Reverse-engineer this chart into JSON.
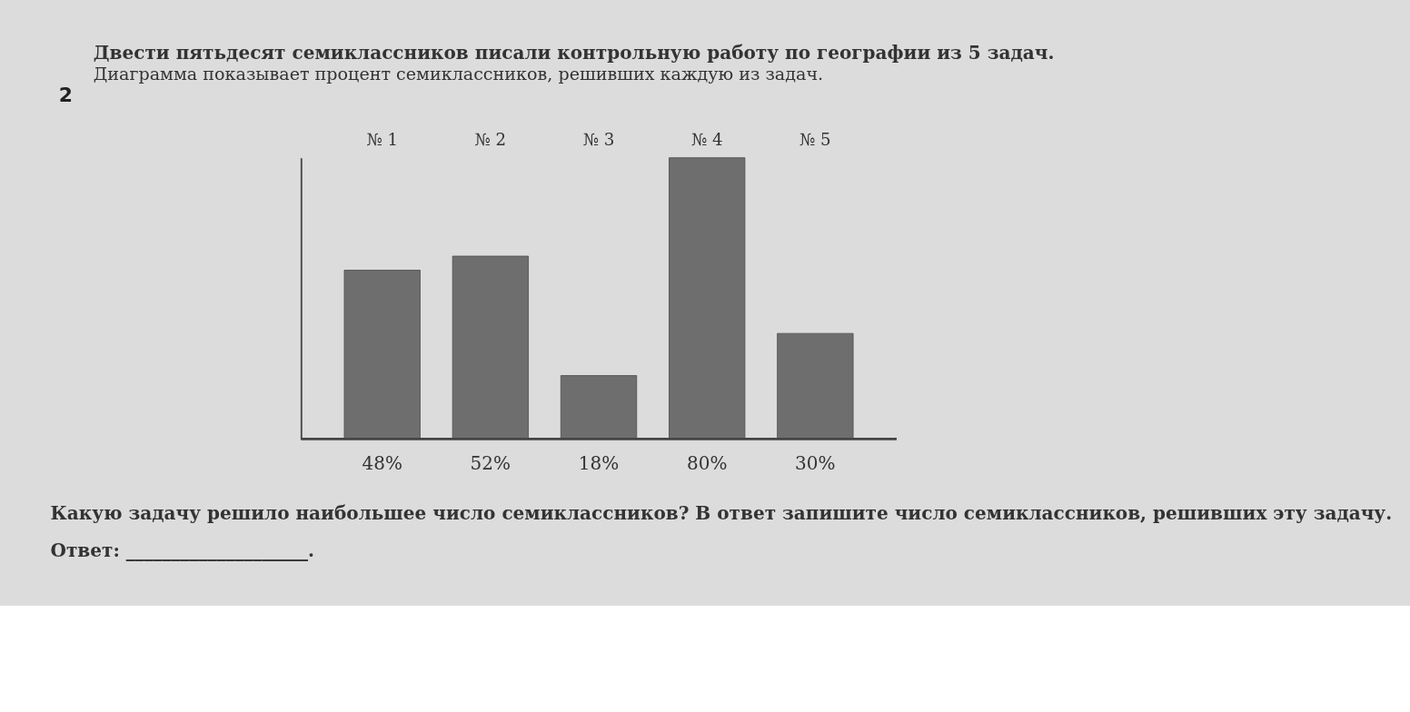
{
  "chart_data": {
    "type": "bar",
    "title": "Двести пятьдесят семиклассников писали контрольную работу по географии из 5 задач.",
    "subtitle": "Диаграмма показывает процент семиклассников, решивших каждую из задач.",
    "categories": [
      "№ 1",
      "№ 2",
      "№ 3",
      "№ 4",
      "№ 5"
    ],
    "values": [
      48,
      52,
      18,
      80,
      30
    ],
    "value_labels": [
      "48%",
      "52%",
      "18%",
      "80%",
      "30%"
    ],
    "color": "#6e6e6e",
    "tick_labels": "x",
    "annotations": [
      "2",
      "Какую задачу решило наибольшее число семиклассников? В ответ запишите число семиклассников, решивших эту задачу.",
      "Ответ: ____________________."
    ]
  }
}
